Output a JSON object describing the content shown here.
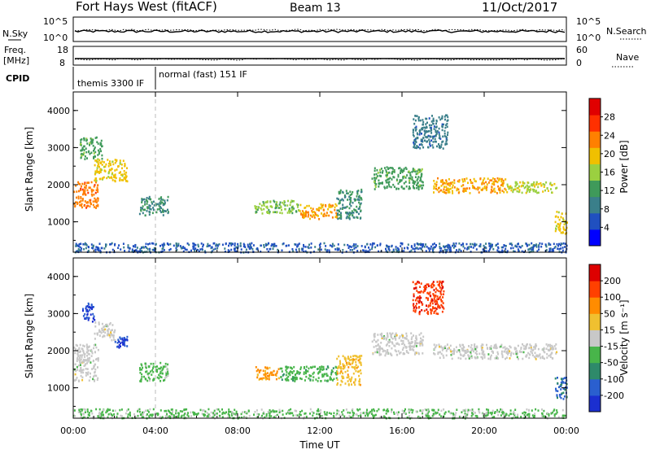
{
  "header": {
    "radar": "Fort Hays West (fitACF)",
    "beam": "Beam 13",
    "date": "11/Oct/2017"
  },
  "strips": {
    "nsky": {
      "label": "N.Sky",
      "right_label": "N.Search",
      "ticks": [
        "10^5",
        "10^0"
      ],
      "right_ticks": [
        "10^5",
        "10^0"
      ]
    },
    "freq": {
      "label_line1": "Freq.",
      "label_line2": "[MHz]",
      "ticks": [
        "18",
        "8"
      ],
      "right_label": "Nave",
      "right_ticks": [
        "60",
        "0"
      ]
    },
    "cpid": {
      "label": "CPID",
      "modes": [
        "themis 3300 IF",
        "normal (fast) 151 IF"
      ]
    }
  },
  "colors": {
    "power_scale": [
      "#0000ff",
      "#2050c0",
      "#3a7f8a",
      "#3f9a5a",
      "#9bd040",
      "#f0c000",
      "#ff8000",
      "#ff3000",
      "#e00000"
    ],
    "velocity_scale": [
      "#1b2fd0",
      "#2a5fcf",
      "#2e8a6a",
      "#48b54a",
      "#c8c8c8",
      "#f0c030",
      "#ff8c00",
      "#ff4000",
      "#dd0000"
    ]
  },
  "chart_data": [
    {
      "type": "heatmap",
      "panel": "power",
      "ylabel": "Slant Range [km]",
      "yticks": [
        "4000",
        "3000",
        "2000",
        "1000"
      ],
      "ylim": [
        180,
        4500
      ],
      "xlim": [
        0,
        24
      ],
      "xticks": [
        "00:00",
        "04:00",
        "08:00",
        "12:00",
        "16:00",
        "20:00",
        "00:00"
      ],
      "colorbar": {
        "label": "Power [dB]",
        "ticks": [
          "28",
          "24",
          "20",
          "16",
          "12",
          "8",
          "4"
        ],
        "range": [
          0,
          30
        ]
      },
      "regions": [
        {
          "t0": 0.0,
          "t1": 1.2,
          "r0": 1400,
          "r1": 2100,
          "level": 22
        },
        {
          "t0": 0.3,
          "t1": 1.4,
          "r0": 2700,
          "r1": 3300,
          "level": 12
        },
        {
          "t0": 1.0,
          "t1": 2.6,
          "r0": 2100,
          "r1": 2700,
          "level": 18
        },
        {
          "t0": 3.2,
          "t1": 4.6,
          "r0": 1200,
          "r1": 1700,
          "level": 10
        },
        {
          "t0": 8.8,
          "t1": 11.0,
          "r0": 1250,
          "r1": 1600,
          "level": 14
        },
        {
          "t0": 11.0,
          "t1": 12.8,
          "r0": 1100,
          "r1": 1500,
          "level": 20
        },
        {
          "t0": 12.8,
          "t1": 14.0,
          "r0": 1100,
          "r1": 1900,
          "level": 10
        },
        {
          "t0": 16.5,
          "t1": 18.2,
          "r0": 3000,
          "r1": 3900,
          "level": 8
        },
        {
          "t0": 14.5,
          "t1": 17.0,
          "r0": 1900,
          "r1": 2500,
          "level": 12
        },
        {
          "t0": 17.5,
          "t1": 21.0,
          "r0": 1800,
          "r1": 2200,
          "level": 20
        },
        {
          "t0": 21.0,
          "t1": 23.5,
          "r0": 1800,
          "r1": 2100,
          "level": 16
        },
        {
          "t0": 23.4,
          "t1": 24.0,
          "r0": 700,
          "r1": 1300,
          "level": 18
        },
        {
          "t0": 0.0,
          "t1": 24.0,
          "r0": 200,
          "r1": 450,
          "level": 6
        }
      ]
    },
    {
      "type": "heatmap",
      "panel": "velocity",
      "ylabel": "Slant Range [km]",
      "yticks": [
        "4000",
        "3000",
        "2000",
        "1000"
      ],
      "ylim": [
        180,
        4500
      ],
      "xlim": [
        0,
        24
      ],
      "xticks": [
        "00:00",
        "04:00",
        "08:00",
        "12:00",
        "16:00",
        "20:00",
        "00:00"
      ],
      "xlabel": "Time UT",
      "colorbar": {
        "label": "Velocity [m s⁻¹]",
        "ticks": [
          "200",
          "100",
          "50",
          "15",
          "-15",
          "-50",
          "-100",
          "-200"
        ],
        "range": [
          -250,
          250
        ]
      },
      "regions": [
        {
          "t0": 0.0,
          "t1": 1.2,
          "r0": 1200,
          "r1": 2200,
          "level": 0
        },
        {
          "t0": 0.4,
          "t1": 1.0,
          "r0": 2800,
          "r1": 3300,
          "level": -200
        },
        {
          "t0": 1.0,
          "t1": 2.0,
          "r0": 2300,
          "r1": 2800,
          "level": 0
        },
        {
          "t0": 2.0,
          "t1": 2.6,
          "r0": 2100,
          "r1": 2400,
          "level": -200
        },
        {
          "t0": 3.2,
          "t1": 4.6,
          "r0": 1200,
          "r1": 1700,
          "level": -50
        },
        {
          "t0": 8.8,
          "t1": 10.0,
          "r0": 1250,
          "r1": 1600,
          "level": 100
        },
        {
          "t0": 10.0,
          "t1": 12.8,
          "r0": 1200,
          "r1": 1600,
          "level": -60
        },
        {
          "t0": 12.8,
          "t1": 14.0,
          "r0": 1100,
          "r1": 1900,
          "level": 60
        },
        {
          "t0": 16.5,
          "t1": 18.0,
          "r0": 3000,
          "r1": 3900,
          "level": 180
        },
        {
          "t0": 14.5,
          "t1": 17.0,
          "r0": 1900,
          "r1": 2500,
          "level": 0
        },
        {
          "t0": 17.5,
          "t1": 23.5,
          "r0": 1800,
          "r1": 2200,
          "level": 0
        },
        {
          "t0": 23.4,
          "t1": 24.0,
          "r0": 700,
          "r1": 1300,
          "level": -150
        },
        {
          "t0": 0.0,
          "t1": 24.0,
          "r0": 200,
          "r1": 450,
          "level": -40
        }
      ]
    }
  ]
}
